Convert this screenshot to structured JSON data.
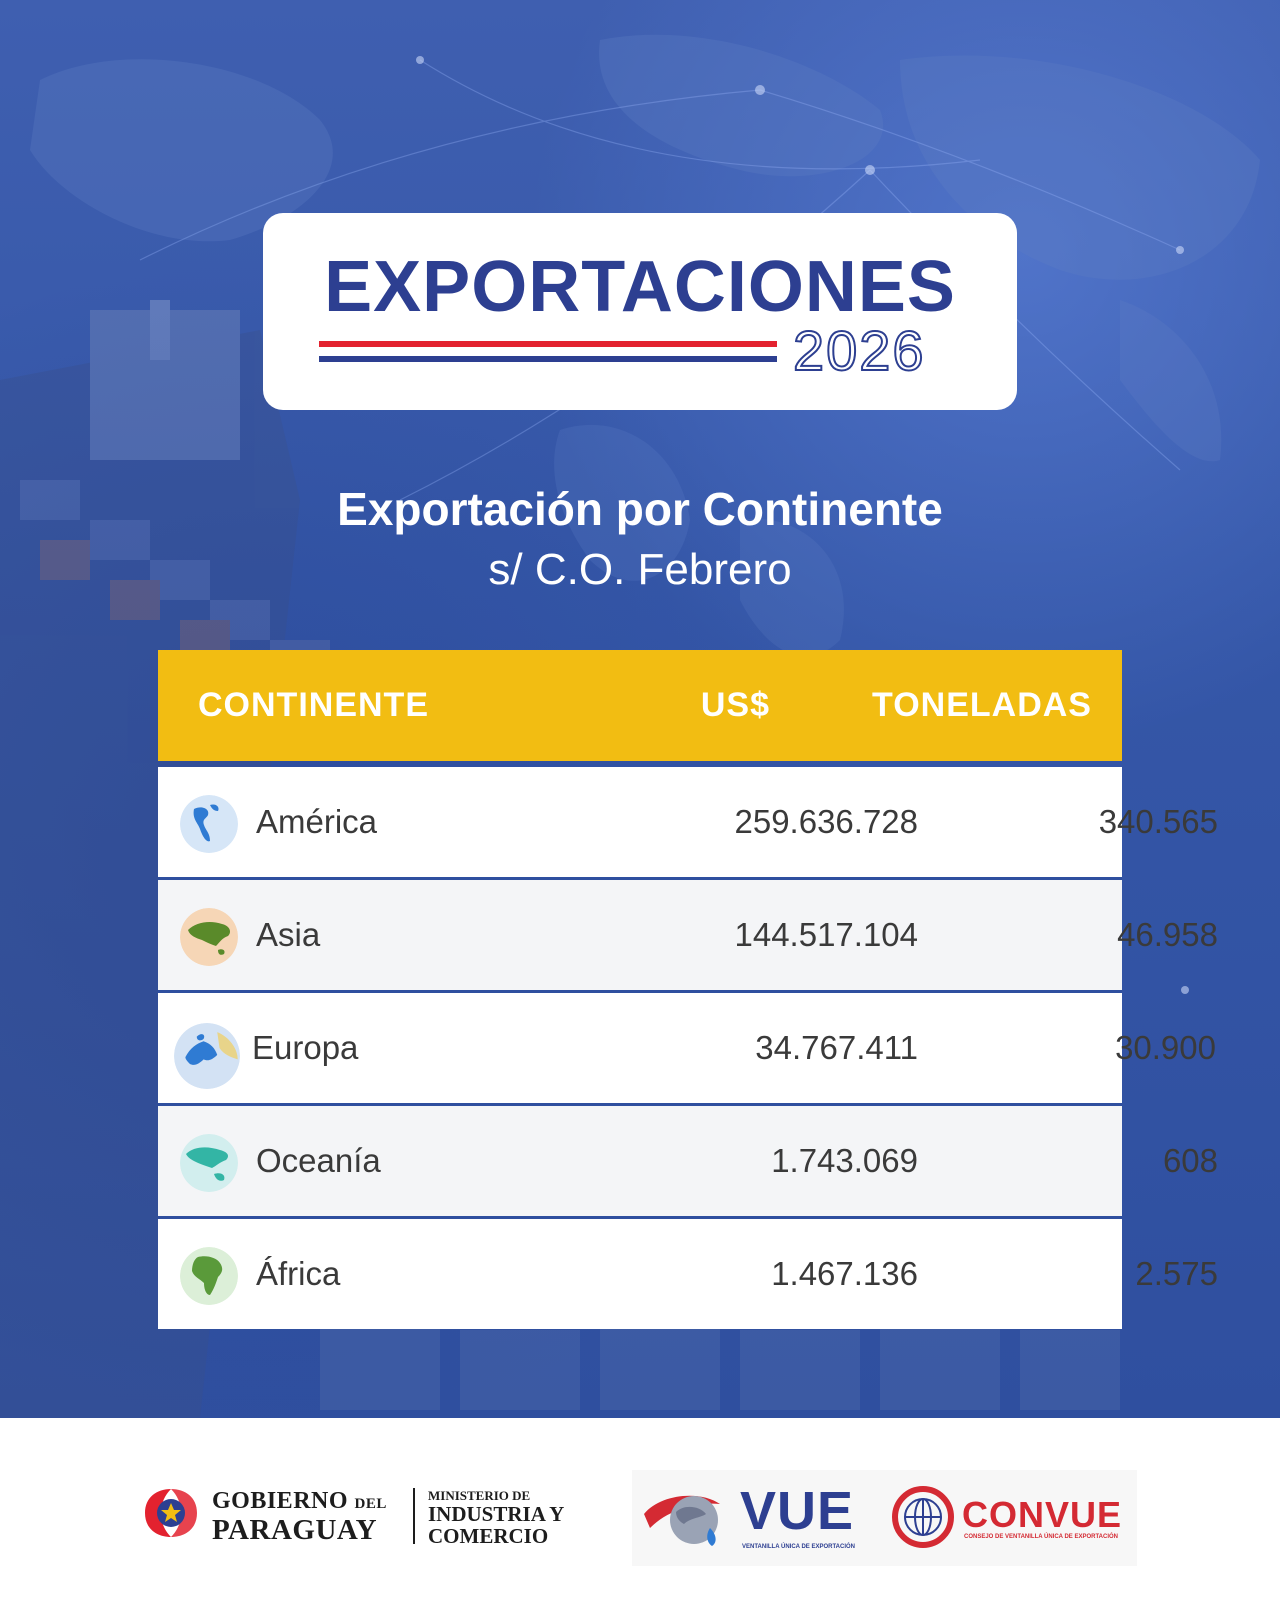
{
  "header": {
    "title": "EXPORTACIONES",
    "year": "2026",
    "colors": {
      "red": "#e3222f",
      "blue": "#2d3f91"
    }
  },
  "heading": {
    "title": "Exportación por Continente",
    "subtitle": "s/ C.O. Febrero"
  },
  "table": {
    "header_color": "#f2bd12",
    "columns": [
      "CONTINENTE",
      "US$",
      "TONELADAS"
    ],
    "rows": [
      {
        "continent": "América",
        "icon": "americas-globe-icon",
        "usd": "259.636.728",
        "tons": "340.565"
      },
      {
        "continent": "Asia",
        "icon": "asia-globe-icon",
        "usd": "144.517.104",
        "tons": "46.958"
      },
      {
        "continent": "Europa",
        "icon": "europe-globe-icon",
        "usd": "34.767.411",
        "tons": "30.900"
      },
      {
        "continent": "Oceanía",
        "icon": "oceania-globe-icon",
        "usd": "1.743.069",
        "tons": "608"
      },
      {
        "continent": "África",
        "icon": "africa-globe-icon",
        "usd": "1.467.136",
        "tons": "2.575"
      }
    ]
  },
  "footer": {
    "gov_line1": "GOBIERNO",
    "gov_del": "DEL",
    "gov_line2": "PARAGUAY",
    "ministry_1": "MINISTERIO DE",
    "ministry_2": "INDUSTRIA Y",
    "ministry_3": "COMERCIO",
    "vue": "VUE",
    "vue_sub": "VENTANILLA ÚNICA DE EXPORTACIÓN",
    "convue": "CONVUE",
    "convue_sub": "CONSEJO DE VENTANILLA ÚNICA DE EXPORTACIÓN"
  }
}
